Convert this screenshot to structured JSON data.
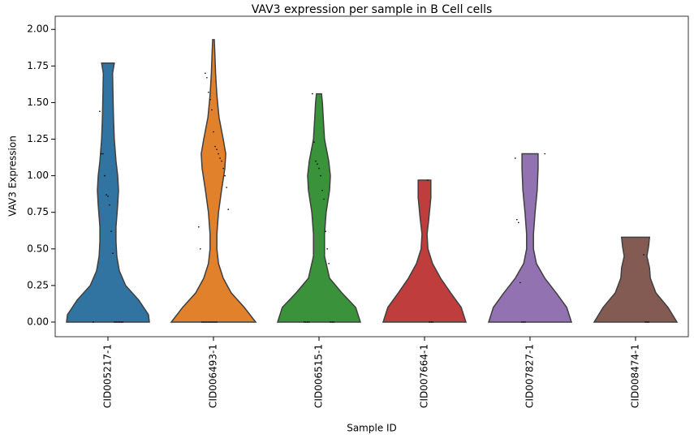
{
  "chart_data": {
    "type": "violin",
    "title": "VAV3 expression per sample in B Cell cells",
    "xlabel": "Sample ID",
    "ylabel": "VAV3 Expression",
    "categories": [
      "CID005217-1",
      "CID006493-1",
      "CID006515-1",
      "CID007664-1",
      "CID007827-1",
      "CID008474-1"
    ],
    "ylim": [
      -0.1,
      2.09
    ],
    "yticks": [
      {
        "value": 0,
        "label": "0.00"
      },
      {
        "value": 0.25,
        "label": "0.25"
      },
      {
        "value": 0.5,
        "label": "0.50"
      },
      {
        "value": 0.75,
        "label": "0.75"
      },
      {
        "value": 1,
        "label": "1.00"
      },
      {
        "value": 1.25,
        "label": "1.25"
      },
      {
        "value": 1.5,
        "label": "1.50"
      },
      {
        "value": 1.75,
        "label": "1.75"
      },
      {
        "value": 2,
        "label": "2.00"
      }
    ],
    "series": [
      {
        "name": "CID005217-1",
        "color": "#3274a1",
        "levels": [
          0,
          0.05,
          0.15,
          0.25,
          0.35,
          0.45,
          0.55,
          0.65,
          0.8,
          0.9,
          1.0,
          1.1,
          1.25,
          1.4,
          1.55,
          1.7,
          1.77
        ],
        "density": [
          0.98,
          0.96,
          0.73,
          0.42,
          0.27,
          0.21,
          0.19,
          0.19,
          0.23,
          0.25,
          0.23,
          0.19,
          0.15,
          0.13,
          0.12,
          0.11,
          0.15
        ],
        "points": [
          0,
          0,
          0,
          0,
          0,
          0,
          0,
          0.47,
          0.62,
          0.8,
          0.86,
          0.87,
          1.0,
          1.15,
          1.15,
          1.44
        ]
      },
      {
        "name": "CID006493-1",
        "color": "#e1812c",
        "levels": [
          0,
          0.1,
          0.2,
          0.3,
          0.4,
          0.5,
          0.6,
          0.75,
          0.9,
          1.05,
          1.15,
          1.25,
          1.4,
          1.55,
          1.7,
          1.85,
          1.93
        ],
        "density": [
          1.0,
          0.73,
          0.42,
          0.23,
          0.12,
          0.08,
          0.08,
          0.12,
          0.19,
          0.27,
          0.29,
          0.23,
          0.13,
          0.08,
          0.05,
          0.03,
          0.02
        ],
        "points": [
          0,
          0,
          0,
          0,
          0,
          0,
          0,
          0,
          0,
          0,
          0.5,
          0.65,
          0.77,
          0.92,
          1.0,
          1.05,
          1.1,
          1.12,
          1.15,
          1.18,
          1.2,
          1.3,
          1.45,
          1.52,
          1.57,
          1.67,
          1.7
        ]
      },
      {
        "name": "CID006515-1",
        "color": "#3a923a",
        "levels": [
          0,
          0.1,
          0.2,
          0.3,
          0.45,
          0.6,
          0.75,
          0.9,
          1.0,
          1.1,
          1.25,
          1.4,
          1.5,
          1.56
        ],
        "density": [
          0.98,
          0.87,
          0.54,
          0.25,
          0.13,
          0.13,
          0.17,
          0.25,
          0.27,
          0.23,
          0.13,
          0.1,
          0.08,
          0.06
        ],
        "points": [
          0,
          0,
          0,
          0,
          0,
          0,
          0,
          0.4,
          0.5,
          0.62,
          0.84,
          0.9,
          1.0,
          1.05,
          1.08,
          1.1,
          1.23,
          1.56
        ]
      },
      {
        "name": "CID007664-1",
        "color": "#c03d3e",
        "levels": [
          0,
          0.1,
          0.2,
          0.3,
          0.4,
          0.5,
          0.6,
          0.7,
          0.85,
          0.97
        ],
        "density": [
          0.98,
          0.87,
          0.62,
          0.38,
          0.19,
          0.08,
          0.06,
          0.1,
          0.15,
          0.15
        ],
        "points": [
          0,
          0,
          0,
          0.97
        ]
      },
      {
        "name": "CID007827-1",
        "color": "#9372b2",
        "levels": [
          0,
          0.1,
          0.2,
          0.3,
          0.4,
          0.5,
          0.6,
          0.75,
          0.9,
          1.05,
          1.15
        ],
        "density": [
          0.98,
          0.87,
          0.62,
          0.35,
          0.15,
          0.08,
          0.08,
          0.12,
          0.17,
          0.19,
          0.19
        ],
        "points": [
          0,
          0,
          0,
          0.27,
          0.68,
          0.7,
          1.12,
          1.15
        ]
      },
      {
        "name": "CID008474-1",
        "color": "#845b53",
        "levels": [
          0,
          0.1,
          0.2,
          0.3,
          0.37,
          0.45,
          0.52,
          0.58
        ],
        "density": [
          0.98,
          0.77,
          0.48,
          0.35,
          0.33,
          0.27,
          0.31,
          0.33
        ],
        "points": [
          0,
          0,
          0,
          0.46
        ]
      }
    ]
  }
}
